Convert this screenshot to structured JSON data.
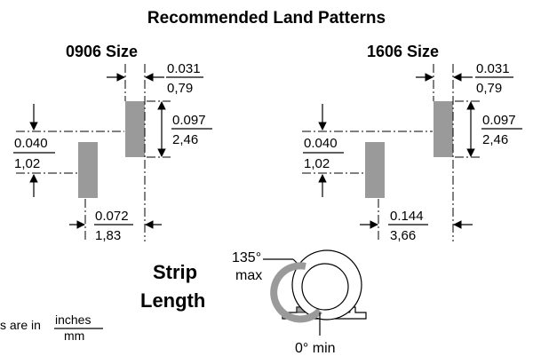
{
  "title": "Recommended Land Patterns",
  "left": {
    "size_label": "0906 Size",
    "width": {
      "inch": "0.031",
      "mm": "0,79"
    },
    "height": {
      "inch": "0.097",
      "mm": "2,46"
    },
    "offset": {
      "inch": "0.040",
      "mm": "1,02"
    },
    "spacing": {
      "inch": "0.072",
      "mm": "1,83"
    }
  },
  "right": {
    "size_label": "1606 Size",
    "width": {
      "inch": "0.031",
      "mm": "0,79"
    },
    "height": {
      "inch": "0.097",
      "mm": "2,46"
    },
    "offset": {
      "inch": "0.040",
      "mm": "1,02"
    },
    "spacing": {
      "inch": "0.144",
      "mm": "3,66"
    }
  },
  "strip": {
    "title_line1": "Strip",
    "title_line2": "Length",
    "max_angle": "135°",
    "max_label": "max",
    "min_label": "0° min"
  },
  "units_note": {
    "prefix": "s are in",
    "numerator": "inches",
    "denominator": "mm"
  },
  "colors": {
    "pad": "#9a9a9a",
    "ink": "#000000"
  }
}
